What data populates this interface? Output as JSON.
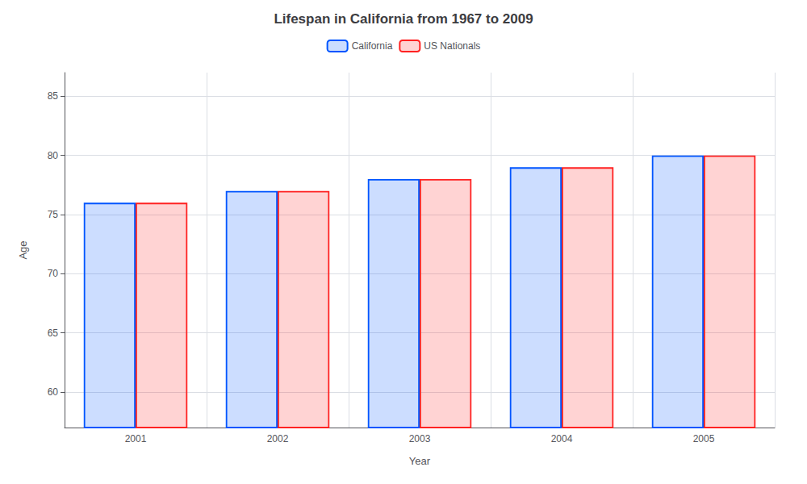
{
  "chart_data": {
    "type": "bar",
    "title": "Lifespan in California from 1967 to 2009",
    "xlabel": "Year",
    "ylabel": "Age",
    "categories": [
      "2001",
      "2002",
      "2003",
      "2004",
      "2005"
    ],
    "series": [
      {
        "name": "California",
        "color": "#0055ff",
        "values": [
          76.0,
          77.0,
          78.0,
          79.0,
          80.0
        ]
      },
      {
        "name": "US Nationals",
        "color": "#ff2222",
        "values": [
          76.0,
          77.0,
          78.0,
          79.0,
          80.0
        ]
      }
    ],
    "ylim": [
      57,
      87
    ],
    "yticks": [
      60,
      65,
      70,
      75,
      80,
      85
    ],
    "grid": true,
    "legend": "top"
  }
}
